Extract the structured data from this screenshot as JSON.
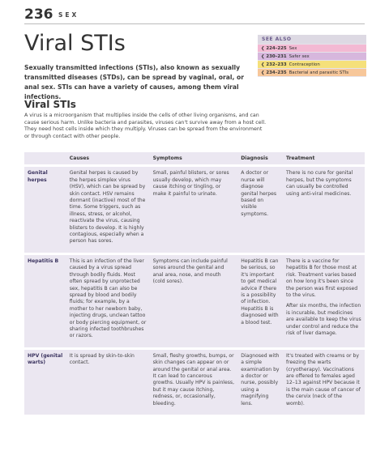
{
  "header": {
    "page_number": "236",
    "section": "SEX"
  },
  "title": "Viral STIs",
  "intro": "Sexually transmitted infections (STIs), also known as sexually transmitted diseases (STDs), can be spread by vaginal, oral, or anal sex. STIs can have a variety of causes, among them viral infections.",
  "see_also": {
    "heading": "SEE ALSO",
    "items": [
      {
        "pages": "224–225",
        "label": "Sex"
      },
      {
        "pages": "230–231",
        "label": "Safer sex"
      },
      {
        "pages": "232–233",
        "label": "Contraception"
      },
      {
        "pages": "234–235",
        "label": "Bacterial and parasitic STIs"
      }
    ]
  },
  "section": {
    "heading": "Viral STIs",
    "body": "A virus is a microorganism that multiplies inside the cells of other living organisms, and can cause serious harm. Unlike bacteria and parasites, viruses can't survive away from a host cell. They need host cells inside which they multiply. Viruses can be spread from the environment or through contact with other people."
  },
  "table": {
    "columns": [
      "Causes",
      "Symptoms",
      "Diagnosis",
      "Treatment"
    ],
    "rows": [
      {
        "label": "Genital herpes",
        "cells": [
          [
            "Genital herpes is caused by the herpes simplex virus (HSV), which can be spread by skin contact. HSV remains dormant (inactive) most of the time. Some triggers, such as illness, stress, or alcohol, reactivate the virus, causing blisters to develop. It is highly contagious, especially when a person has sores."
          ],
          [
            "Small, painful blisters, or sores usually develop, which may cause itching or tingling, or make it painful to urinate."
          ],
          [
            "A doctor or nurse will diagnose genital herpes based on visible symptoms."
          ],
          [
            "There is no cure for genital herpes, but the symptoms can usually be controlled using anti-viral medicines."
          ]
        ]
      },
      {
        "label": "Hepatitis B",
        "cells": [
          [
            "This is an infection of the liver caused by a virus spread through bodily fluids. Most often spread by unprotected sex, hepatitis B can also be spread by blood and bodily fluids; for example, by a mother to her newborn baby, injecting drugs, unclean tattoo or body piercing equipment, or sharing infected toothbrushes or razors."
          ],
          [
            "Symptoms can include painful sores around the genital and anal area, nose, and mouth (cold sores)."
          ],
          [
            "Hepatitis B can be serious, so it's important to get medical advice if there is a possibility of infection. Hepatitis B is diagnosed with a blood test."
          ],
          [
            "There is a vaccine for hepatitis B for those most at risk. Treatment varies based on how long it's been since the person was first exposed to the virus.",
            "After six months, the infection is incurable, but medicines are available to keep the virus under control and reduce the risk of liver damage."
          ]
        ]
      },
      {
        "label": "HPV (genital warts)",
        "cells": [
          [
            "It is spread by skin-to-skin contact."
          ],
          [
            "Small, fleshy growths, bumps, or skin changes can appear on or around the genital or anal area. It can lead to cancerous growths. Usually HPV is painless, but it may cause itching, redness, or, occasionally, bleeding."
          ],
          [
            "Diagnosed with a simple examination by a doctor or nurse, possibly using a magnifying lens."
          ],
          [
            "It's treated with creams or by freezing the warts (cryotherapy). Vaccinations are offered to females aged 12–13 against HPV because it is the main cause of cancer of the cervix (neck of the womb)."
          ]
        ]
      }
    ]
  }
}
